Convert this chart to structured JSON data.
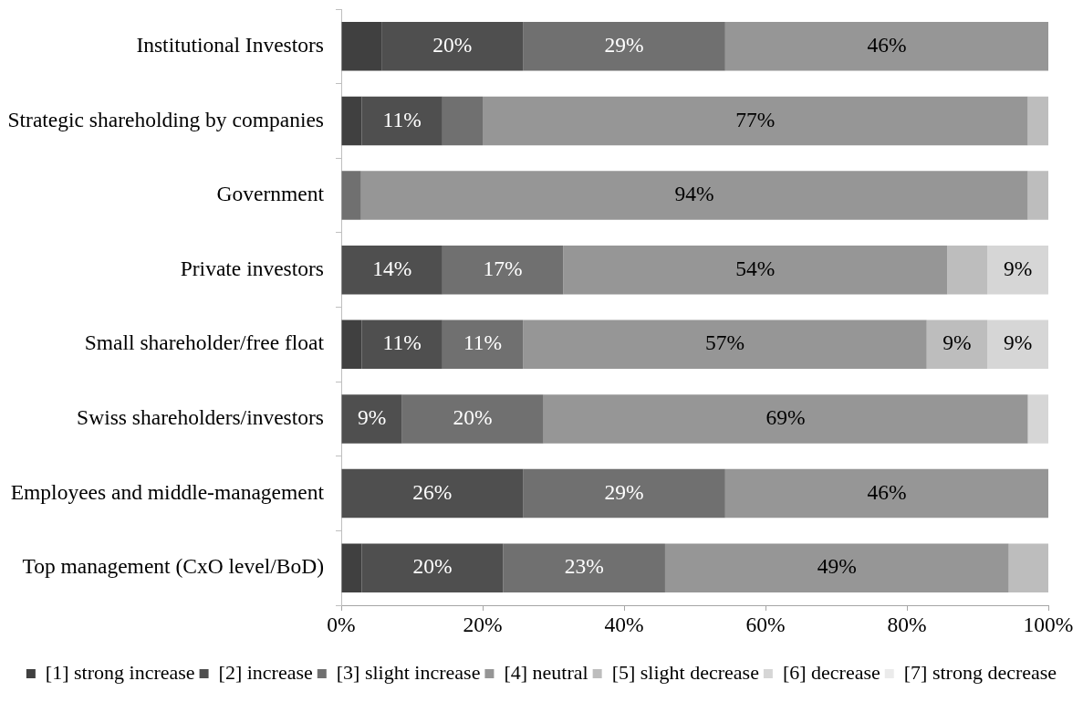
{
  "chart_data": {
    "type": "bar",
    "orientation": "horizontal",
    "stacked": true,
    "categories": [
      "Institutional Investors",
      "Strategic shareholding by companies",
      "Government",
      "Private investors",
      "Small shareholder/free float",
      "Swiss shareholders/investors",
      "Employees and middle-management",
      "Top management (CxO level/BoD)"
    ],
    "series": [
      {
        "name": "[1] strong increase",
        "color": "#404040",
        "values": [
          5.7,
          2.9,
          null,
          null,
          2.9,
          null,
          null,
          2.9
        ]
      },
      {
        "name": "[2] increase",
        "color": "#4f4f4f",
        "values": [
          20,
          11.4,
          null,
          14.3,
          11.4,
          8.6,
          25.7,
          20
        ],
        "value_labels": [
          "20%",
          "11%",
          null,
          "14%",
          "11%",
          "9%",
          "26%",
          "20%"
        ]
      },
      {
        "name": "[3] slight increase",
        "color": "#707070",
        "values": [
          28.6,
          5.7,
          2.8,
          17.1,
          11.4,
          20,
          28.6,
          22.9
        ],
        "value_labels": [
          "29%",
          null,
          null,
          "17%",
          "11%",
          "20%",
          "29%",
          "23%"
        ]
      },
      {
        "name": "[4] neutral",
        "color": "#969696",
        "values": [
          45.7,
          77.1,
          94.3,
          54.3,
          57.1,
          68.5,
          45.7,
          48.6
        ],
        "value_labels": [
          "46%",
          "77%",
          "94%",
          "54%",
          "57%",
          "69%",
          "46%",
          "49%"
        ]
      },
      {
        "name": "[5] slight decrease",
        "color": "#bdbdbd",
        "values": [
          null,
          2.9,
          2.9,
          5.7,
          8.6,
          null,
          null,
          5.6
        ],
        "value_labels": [
          null,
          null,
          null,
          null,
          "9%",
          null,
          null,
          null
        ]
      },
      {
        "name": "[6] decrease",
        "color": "#d6d6d6",
        "values": [
          null,
          null,
          null,
          8.6,
          8.6,
          2.9,
          null,
          null
        ],
        "value_labels": [
          null,
          null,
          null,
          "9%",
          "9%",
          null,
          null,
          null
        ]
      },
      {
        "name": "[7] strong decrease",
        "color": "#ebebeb",
        "values": [
          null,
          null,
          null,
          null,
          null,
          null,
          null,
          null
        ]
      }
    ],
    "xlim": [
      0,
      100
    ],
    "xticks": [
      {
        "value": 0,
        "label": "0%"
      },
      {
        "value": 20,
        "label": "20%"
      },
      {
        "value": 40,
        "label": "40%"
      },
      {
        "value": 60,
        "label": "60%"
      },
      {
        "value": 80,
        "label": "80%"
      },
      {
        "value": 100,
        "label": "100%"
      }
    ],
    "grid": false,
    "legend": "bottom"
  }
}
